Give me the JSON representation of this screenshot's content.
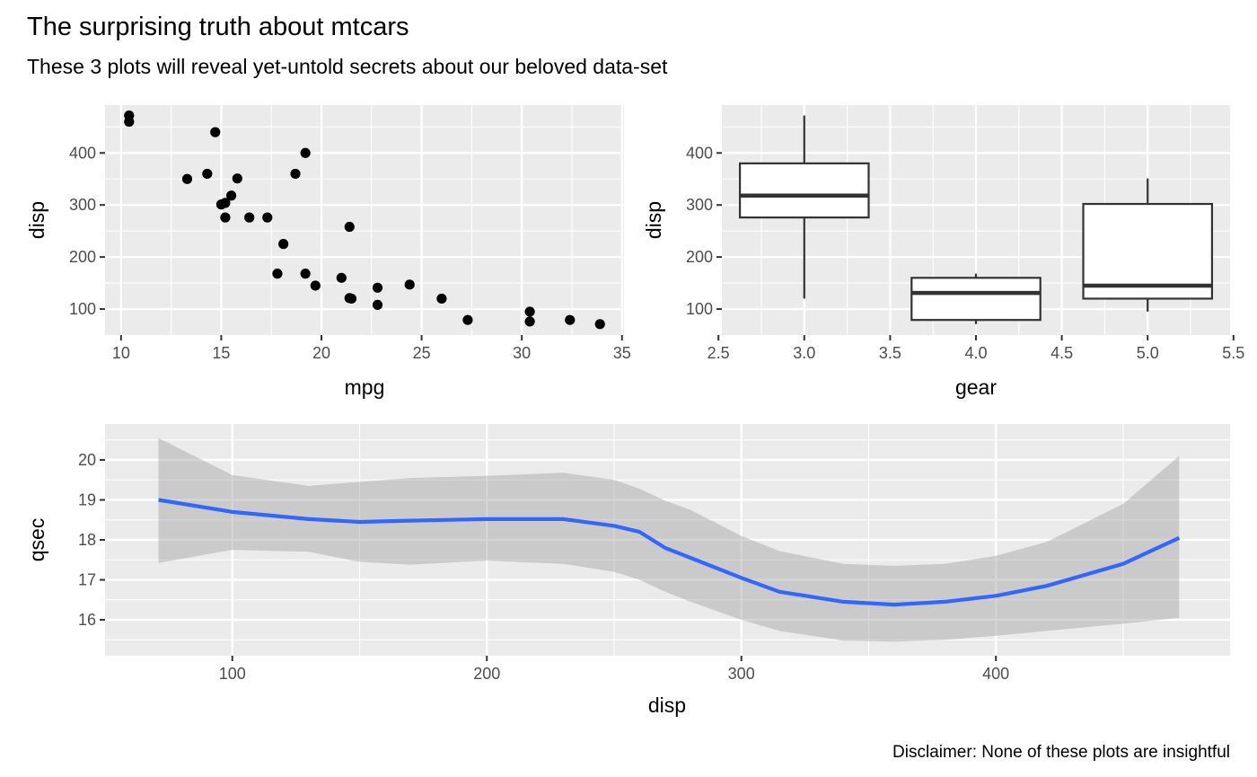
{
  "figure": {
    "title": "The surprising truth about mtcars",
    "subtitle": "These 3 plots will reveal yet-untold secrets about our beloved data-set",
    "caption": "Disclaimer: None of these plots are insightful"
  },
  "chart_data": [
    {
      "type": "scatter",
      "xlabel": "mpg",
      "ylabel": "disp",
      "xlim": [
        9.2,
        35.1
      ],
      "ylim": [
        50.0,
        492.0
      ],
      "xticks": [
        10,
        15,
        20,
        25,
        30,
        35
      ],
      "xtick_labels": [
        "10",
        "15",
        "20",
        "25",
        "30",
        "35"
      ],
      "yticks": [
        100,
        200,
        300,
        400
      ],
      "ytick_labels": [
        "100",
        "200",
        "300",
        "400"
      ],
      "point_color": "#000000",
      "grid": true,
      "points": [
        [
          10.4,
          472
        ],
        [
          10.4,
          460
        ],
        [
          13.3,
          350
        ],
        [
          14.3,
          360
        ],
        [
          14.7,
          440
        ],
        [
          15.0,
          301
        ],
        [
          15.2,
          304
        ],
        [
          15.2,
          276
        ],
        [
          15.5,
          318
        ],
        [
          15.8,
          351
        ],
        [
          16.4,
          276
        ],
        [
          17.3,
          276
        ],
        [
          17.8,
          168
        ],
        [
          18.1,
          225
        ],
        [
          18.7,
          360
        ],
        [
          19.2,
          400
        ],
        [
          19.2,
          168
        ],
        [
          19.7,
          145
        ],
        [
          21.0,
          160
        ],
        [
          21.4,
          258
        ],
        [
          21.4,
          121
        ],
        [
          21.5,
          120
        ],
        [
          22.8,
          141
        ],
        [
          22.8,
          108
        ],
        [
          24.4,
          147
        ],
        [
          26.0,
          120
        ],
        [
          27.3,
          79
        ],
        [
          30.4,
          95
        ],
        [
          30.4,
          76
        ],
        [
          32.4,
          79
        ],
        [
          33.9,
          71
        ]
      ]
    },
    {
      "type": "box",
      "xlabel": "gear",
      "ylabel": "disp",
      "xlim": [
        2.52,
        5.48
      ],
      "ylim": [
        50.0,
        492.0
      ],
      "xticks": [
        2.5,
        3.0,
        3.5,
        4.0,
        4.5,
        5.0,
        5.5
      ],
      "xtick_labels": [
        "2.5",
        "3.0",
        "3.5",
        "4.0",
        "4.5",
        "5.0",
        "5.5"
      ],
      "yticks": [
        100,
        200,
        300,
        400
      ],
      "ytick_labels": [
        "100",
        "200",
        "300",
        "400"
      ],
      "box_width": 0.75,
      "fill_color": "#ffffff",
      "line_color": "#333333",
      "grid": true,
      "boxes": [
        {
          "x": 3,
          "lower": 120,
          "q1": 276,
          "median": 318,
          "q3": 380,
          "upper": 472
        },
        {
          "x": 4,
          "lower": 71,
          "q1": 79,
          "median": 131,
          "q3": 160,
          "upper": 168
        },
        {
          "x": 5,
          "lower": 95,
          "q1": 120,
          "median": 145,
          "q3": 302,
          "upper": 351
        }
      ]
    },
    {
      "type": "line",
      "xlabel": "disp",
      "ylabel": "qsec",
      "xlim": [
        50.0,
        492.0
      ],
      "ylim": [
        15.1,
        20.9
      ],
      "xticks": [
        100,
        200,
        300,
        400
      ],
      "xtick_labels": [
        "100",
        "200",
        "300",
        "400"
      ],
      "yticks": [
        16,
        17,
        18,
        19,
        20
      ],
      "ytick_labels": [
        "16",
        "17",
        "18",
        "19",
        "20"
      ],
      "line_color": "#3366ff",
      "band_color": "#999999",
      "grid": true,
      "x": [
        71,
        100,
        130,
        150,
        170,
        200,
        230,
        250,
        260,
        270,
        280,
        300,
        315,
        340,
        360,
        380,
        400,
        420,
        450,
        472
      ],
      "y": [
        19.0,
        18.7,
        18.52,
        18.45,
        18.48,
        18.52,
        18.52,
        18.35,
        18.2,
        17.8,
        17.55,
        17.05,
        16.7,
        16.45,
        16.38,
        16.45,
        16.6,
        16.85,
        17.4,
        18.05
      ],
      "lower": [
        17.42,
        17.75,
        17.7,
        17.45,
        17.38,
        17.48,
        17.4,
        17.2,
        17.0,
        16.7,
        16.45,
        16.0,
        15.72,
        15.48,
        15.45,
        15.5,
        15.6,
        15.72,
        15.9,
        16.05
      ],
      "upper": [
        20.55,
        19.62,
        19.35,
        19.45,
        19.55,
        19.6,
        19.68,
        19.5,
        19.28,
        18.98,
        18.75,
        18.1,
        17.72,
        17.4,
        17.35,
        17.4,
        17.6,
        17.95,
        18.9,
        20.1
      ]
    }
  ]
}
